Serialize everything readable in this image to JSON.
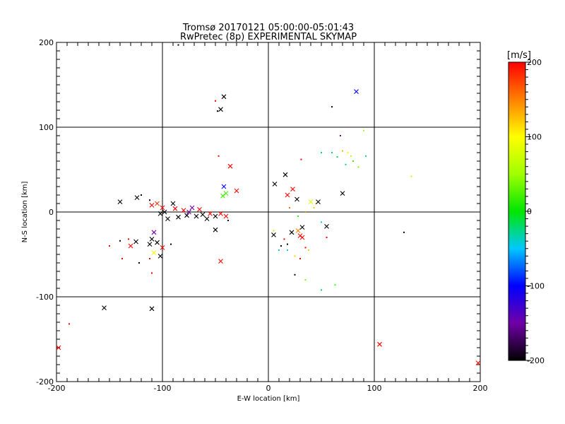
{
  "chart_data": {
    "type": "scatter",
    "title": "Tromsø 20170121 05:00:00-05:01:43",
    "subtitle": "RwPretec (8p) EXPERIMENTAL SKYMAP",
    "xlabel": "E-W location [km]",
    "ylabel": "N-S location [km]",
    "xlim": [
      -200,
      200
    ],
    "ylim": [
      -200,
      200
    ],
    "xticks": [
      "-200",
      "-100",
      "0",
      "100",
      "200"
    ],
    "yticks": [
      "-200",
      "-100",
      "0",
      "100",
      "200"
    ],
    "grid": true,
    "colorbar": {
      "label": "[m/s]",
      "min": -200,
      "max": 200,
      "ticks": [
        "200",
        "100",
        "0",
        "-100",
        "-200"
      ]
    },
    "legend": "none",
    "points": [
      {
        "x": -85,
        "y": 197,
        "v": -200,
        "m": "dot"
      },
      {
        "x": -50,
        "y": 131,
        "v": 200,
        "m": "dot"
      },
      {
        "x": -42,
        "y": 136,
        "v": -200,
        "m": "x"
      },
      {
        "x": -45,
        "y": 121,
        "v": -200,
        "m": "x"
      },
      {
        "x": -48,
        "y": 119,
        "v": -200,
        "m": "dot"
      },
      {
        "x": 83,
        "y": 142,
        "v": -100,
        "m": "x"
      },
      {
        "x": 60,
        "y": 124,
        "v": -200,
        "m": "dot"
      },
      {
        "x": -47,
        "y": 66,
        "v": 200,
        "m": "dot"
      },
      {
        "x": -36,
        "y": 54,
        "v": 200,
        "m": "x"
      },
      {
        "x": -30,
        "y": 25,
        "v": 200,
        "m": "x"
      },
      {
        "x": -42,
        "y": 30,
        "v": -100,
        "m": "x"
      },
      {
        "x": -40,
        "y": 22,
        "v": 20,
        "m": "x"
      },
      {
        "x": -43,
        "y": 19,
        "v": 20,
        "m": "x"
      },
      {
        "x": -140,
        "y": 12,
        "v": -200,
        "m": "x"
      },
      {
        "x": -124,
        "y": 17,
        "v": -200,
        "m": "x"
      },
      {
        "x": -120,
        "y": 20,
        "v": -200,
        "m": "dot"
      },
      {
        "x": -112,
        "y": 14,
        "v": -200,
        "m": "dot"
      },
      {
        "x": -110,
        "y": 8,
        "v": 200,
        "m": "x"
      },
      {
        "x": -105,
        "y": 10,
        "v": 180,
        "m": "x"
      },
      {
        "x": -100,
        "y": 5,
        "v": 200,
        "m": "x"
      },
      {
        "x": -102,
        "y": -2,
        "v": -200,
        "m": "x"
      },
      {
        "x": -98,
        "y": 0,
        "v": -200,
        "m": "x"
      },
      {
        "x": -95,
        "y": -8,
        "v": -200,
        "m": "x"
      },
      {
        "x": -90,
        "y": 10,
        "v": -200,
        "m": "x"
      },
      {
        "x": -88,
        "y": 4,
        "v": 200,
        "m": "x"
      },
      {
        "x": -85,
        "y": -6,
        "v": -200,
        "m": "x"
      },
      {
        "x": -80,
        "y": 2,
        "v": 200,
        "m": "x"
      },
      {
        "x": -77,
        "y": -4,
        "v": -200,
        "m": "x"
      },
      {
        "x": -75,
        "y": 0,
        "v": -150,
        "m": "x"
      },
      {
        "x": -72,
        "y": 5,
        "v": -150,
        "m": "x"
      },
      {
        "x": -68,
        "y": -5,
        "v": -200,
        "m": "x"
      },
      {
        "x": -65,
        "y": 3,
        "v": 200,
        "m": "x"
      },
      {
        "x": -62,
        "y": -3,
        "v": -200,
        "m": "x"
      },
      {
        "x": -58,
        "y": -8,
        "v": -200,
        "m": "x"
      },
      {
        "x": -55,
        "y": -2,
        "v": 200,
        "m": "x"
      },
      {
        "x": -50,
        "y": -5,
        "v": -200,
        "m": "x"
      },
      {
        "x": -45,
        "y": -2,
        "v": 200,
        "m": "x"
      },
      {
        "x": -40,
        "y": -5,
        "v": 200,
        "m": "x"
      },
      {
        "x": -38,
        "y": -10,
        "v": -200,
        "m": "dot"
      },
      {
        "x": -50,
        "y": -21,
        "v": -200,
        "m": "x"
      },
      {
        "x": -108,
        "y": -24,
        "v": -150,
        "m": "x"
      },
      {
        "x": -110,
        "y": -32,
        "v": -200,
        "m": "x"
      },
      {
        "x": -112,
        "y": -38,
        "v": -200,
        "m": "x"
      },
      {
        "x": -105,
        "y": -36,
        "v": -200,
        "m": "x"
      },
      {
        "x": -100,
        "y": -42,
        "v": 200,
        "m": "x"
      },
      {
        "x": -102,
        "y": -52,
        "v": -200,
        "m": "x"
      },
      {
        "x": -108,
        "y": -48,
        "v": 90,
        "m": "x"
      },
      {
        "x": -112,
        "y": -55,
        "v": 200,
        "m": "dot"
      },
      {
        "x": -125,
        "y": -35,
        "v": -200,
        "m": "x"
      },
      {
        "x": -130,
        "y": -40,
        "v": 200,
        "m": "x"
      },
      {
        "x": -132,
        "y": -32,
        "v": 200,
        "m": "dot"
      },
      {
        "x": -140,
        "y": -34,
        "v": -200,
        "m": "dot"
      },
      {
        "x": -150,
        "y": -40,
        "v": 200,
        "m": "dot"
      },
      {
        "x": -138,
        "y": -55,
        "v": 200,
        "m": "dot"
      },
      {
        "x": -122,
        "y": -60,
        "v": -200,
        "m": "dot"
      },
      {
        "x": -110,
        "y": -72,
        "v": 200,
        "m": "dot"
      },
      {
        "x": -92,
        "y": -38,
        "v": -200,
        "m": "dot"
      },
      {
        "x": -45,
        "y": -58,
        "v": 200,
        "m": "x"
      },
      {
        "x": -155,
        "y": -113,
        "v": -200,
        "m": "x"
      },
      {
        "x": -110,
        "y": -114,
        "v": -200,
        "m": "x"
      },
      {
        "x": -188,
        "y": -132,
        "v": 200,
        "m": "dot"
      },
      {
        "x": -198,
        "y": -160,
        "v": 200,
        "m": "x"
      },
      {
        "x": 6,
        "y": 33,
        "v": -200,
        "m": "x"
      },
      {
        "x": 16,
        "y": 44,
        "v": -200,
        "m": "x"
      },
      {
        "x": 18,
        "y": 20,
        "v": 200,
        "m": "x"
      },
      {
        "x": 23,
        "y": 27,
        "v": 200,
        "m": "x"
      },
      {
        "x": 27,
        "y": 15,
        "v": -200,
        "m": "x"
      },
      {
        "x": 31,
        "y": 62,
        "v": 200,
        "m": "dot"
      },
      {
        "x": 20,
        "y": 5,
        "v": 160,
        "m": "dot"
      },
      {
        "x": 35,
        "y": 0,
        "v": 150,
        "m": "dot"
      },
      {
        "x": 45,
        "y": 10,
        "v": 120,
        "m": "dot"
      },
      {
        "x": 40,
        "y": 12,
        "v": 80,
        "m": "x"
      },
      {
        "x": 43,
        "y": 5,
        "v": 120,
        "m": "dot"
      },
      {
        "x": 47,
        "y": 12,
        "v": -200,
        "m": "x"
      },
      {
        "x": 28,
        "y": -5,
        "v": 20,
        "m": "dot"
      },
      {
        "x": 50,
        "y": -12,
        "v": -50,
        "m": "dot"
      },
      {
        "x": 55,
        "y": -17,
        "v": -200,
        "m": "x"
      },
      {
        "x": 55,
        "y": -30,
        "v": 200,
        "m": "dot"
      },
      {
        "x": 5,
        "y": -27,
        "v": -200,
        "m": "x"
      },
      {
        "x": 5,
        "y": -22,
        "v": 50,
        "m": "dot"
      },
      {
        "x": 12,
        "y": -40,
        "v": -200,
        "m": "dot"
      },
      {
        "x": 15,
        "y": -32,
        "v": 200,
        "m": "dot"
      },
      {
        "x": 18,
        "y": -38,
        "v": -200,
        "m": "dot"
      },
      {
        "x": 22,
        "y": -24,
        "v": -200,
        "m": "x"
      },
      {
        "x": 28,
        "y": -22,
        "v": 150,
        "m": "x"
      },
      {
        "x": 30,
        "y": -28,
        "v": 200,
        "m": "x"
      },
      {
        "x": 32,
        "y": -30,
        "v": 200,
        "m": "x"
      },
      {
        "x": 32,
        "y": -18,
        "v": -200,
        "m": "x"
      },
      {
        "x": 35,
        "y": -42,
        "v": 200,
        "m": "dot"
      },
      {
        "x": 38,
        "y": -45,
        "v": 120,
        "m": "dot"
      },
      {
        "x": 10,
        "y": -45,
        "v": -50,
        "m": "dot"
      },
      {
        "x": 18,
        "y": -45,
        "v": -50,
        "m": "dot"
      },
      {
        "x": 25,
        "y": -52,
        "v": 120,
        "m": "dot"
      },
      {
        "x": 30,
        "y": -55,
        "v": 200,
        "m": "dot"
      },
      {
        "x": 25,
        "y": -74,
        "v": -200,
        "m": "dot"
      },
      {
        "x": 35,
        "y": -80,
        "v": 40,
        "m": "dot"
      },
      {
        "x": 50,
        "y": -92,
        "v": -20,
        "m": "dot"
      },
      {
        "x": 63,
        "y": -86,
        "v": 20,
        "m": "dot"
      },
      {
        "x": 70,
        "y": 22,
        "v": -200,
        "m": "x"
      },
      {
        "x": 68,
        "y": 90,
        "v": -150,
        "m": "dot"
      },
      {
        "x": 90,
        "y": 96,
        "v": 50,
        "m": "dot"
      },
      {
        "x": 50,
        "y": 70,
        "v": -20,
        "m": "dot"
      },
      {
        "x": 60,
        "y": 70,
        "v": -20,
        "m": "dot"
      },
      {
        "x": 65,
        "y": 65,
        "v": -20,
        "m": "dot"
      },
      {
        "x": 70,
        "y": 72,
        "v": 130,
        "m": "dot"
      },
      {
        "x": 75,
        "y": 70,
        "v": 100,
        "m": "dot"
      },
      {
        "x": 78,
        "y": 66,
        "v": 60,
        "m": "dot"
      },
      {
        "x": 73,
        "y": 56,
        "v": -20,
        "m": "dot"
      },
      {
        "x": 80,
        "y": 60,
        "v": 20,
        "m": "dot"
      },
      {
        "x": 85,
        "y": 53,
        "v": 40,
        "m": "dot"
      },
      {
        "x": 92,
        "y": 66,
        "v": -20,
        "m": "dot"
      },
      {
        "x": 135,
        "y": 42,
        "v": 60,
        "m": "dot"
      },
      {
        "x": 128,
        "y": -24,
        "v": -200,
        "m": "dot"
      },
      {
        "x": 105,
        "y": -156,
        "v": 200,
        "m": "x"
      },
      {
        "x": 198,
        "y": -178,
        "v": 200,
        "m": "x"
      }
    ]
  }
}
